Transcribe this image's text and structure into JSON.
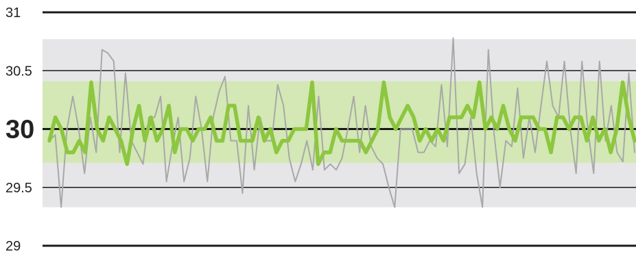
{
  "chart_data": {
    "type": "line",
    "title": "",
    "xlabel": "",
    "ylabel": "",
    "ylim": [
      29,
      31
    ],
    "yticks": [
      {
        "value": 31,
        "label": "31",
        "emphasis": false
      },
      {
        "value": 30.5,
        "label": "30.5",
        "emphasis": false
      },
      {
        "value": 30,
        "label": "30",
        "emphasis": true
      },
      {
        "value": 29.5,
        "label": "29.5",
        "emphasis": false
      },
      {
        "value": 29,
        "label": "29",
        "emphasis": false
      }
    ],
    "bands": [
      {
        "from": 29.33,
        "to": 30.77,
        "color": "#e6e6e8"
      },
      {
        "from": 29.71,
        "to": 30.41,
        "color": "#d3e8b4"
      }
    ],
    "colors": {
      "raw_series": "#a8a8a8",
      "smooth_series": "#8dc63f",
      "emphasis_label": "#8dc63f",
      "grid": "#1a1a1a"
    },
    "series": [
      {
        "values": [
          29.9,
          29.95,
          29.33,
          30.0,
          30.28,
          30.0,
          29.62,
          30.1,
          29.8,
          30.68,
          30.65,
          30.58,
          29.8,
          30.48,
          29.9,
          29.8,
          29.7,
          30.1,
          30.1,
          30.28,
          29.55,
          29.85,
          30.1,
          29.55,
          29.75,
          30.28,
          30.0,
          29.55,
          30.1,
          30.32,
          30.45,
          29.9,
          29.9,
          29.45,
          30.2,
          29.65,
          30.1,
          29.9,
          29.9,
          30.38,
          30.2,
          29.75,
          29.55,
          29.7,
          29.9,
          29.65,
          30.28,
          29.65,
          29.7,
          29.65,
          29.75,
          30.0,
          30.28,
          29.8,
          30.2,
          29.85,
          29.75,
          29.7,
          29.5,
          29.33,
          30.0,
          30.0,
          30.0,
          29.8,
          29.8,
          29.9,
          29.85,
          30.38,
          29.85,
          30.78,
          29.62,
          29.7,
          30.1,
          29.62,
          29.33,
          30.68,
          29.95,
          29.5,
          29.9,
          29.85,
          30.35,
          29.75,
          30.1,
          29.8,
          30.2,
          30.58,
          30.2,
          30.1,
          30.58,
          30.0,
          29.62,
          30.58,
          30.0,
          29.62,
          30.58,
          29.9,
          30.2,
          29.8,
          29.72,
          30.48,
          29.8
        ]
      },
      {
        "values": [
          29.9,
          30.1,
          30.0,
          29.8,
          29.8,
          29.9,
          29.8,
          30.4,
          30.0,
          29.9,
          30.1,
          30.0,
          29.9,
          29.7,
          30.0,
          30.2,
          29.9,
          30.1,
          29.9,
          30.0,
          30.2,
          29.8,
          30.0,
          30.0,
          29.9,
          30.0,
          30.0,
          30.1,
          29.9,
          29.9,
          30.2,
          30.2,
          29.9,
          29.9,
          29.9,
          30.1,
          29.9,
          30.0,
          29.8,
          29.9,
          29.9,
          30.0,
          30.0,
          30.0,
          30.4,
          29.7,
          29.8,
          29.8,
          30.0,
          29.9,
          29.9,
          29.9,
          29.9,
          29.8,
          29.9,
          30.0,
          30.4,
          30.1,
          30.0,
          30.1,
          30.2,
          30.1,
          29.9,
          30.0,
          29.9,
          30.0,
          29.9,
          30.1,
          30.1,
          30.1,
          30.2,
          30.1,
          30.4,
          30.0,
          30.1,
          30.0,
          30.2,
          30.0,
          29.9,
          30.1,
          30.1,
          30.1,
          30.0,
          30.0,
          29.8,
          30.1,
          30.1,
          30.0,
          30.1,
          30.1,
          29.9,
          30.1,
          29.9,
          30.0,
          29.8,
          30.0,
          30.4,
          30.1,
          29.9
        ]
      }
    ]
  }
}
